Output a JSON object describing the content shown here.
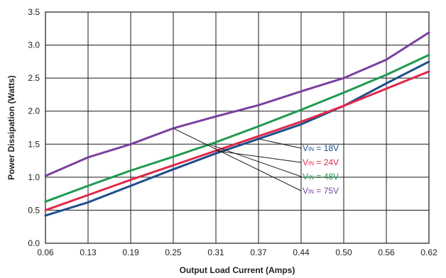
{
  "chart_data": {
    "type": "line",
    "title": "",
    "xlabel": "Output Load Current (Amps)",
    "ylabel": "Power Dissipation (Watts)",
    "xlim": [
      0.06,
      0.62
    ],
    "ylim": [
      0.0,
      3.5
    ],
    "grid": true,
    "x_ticks": [
      "0.06",
      "0.13",
      "0.19",
      "0.25",
      "0.31",
      "0.37",
      "0.44",
      "0.50",
      "0.56",
      "0.62"
    ],
    "y_ticks": [
      "0.0",
      "0.5",
      "1.0",
      "1.5",
      "2.0",
      "2.5",
      "3.0",
      "3.5"
    ],
    "series": [
      {
        "name": "18V",
        "label_prefix": "V",
        "label_sub": "IN",
        "label_eq": " = 18V",
        "color": "#1f4e8c",
        "x": [
          0.06,
          0.13,
          0.19,
          0.25,
          0.31,
          0.37,
          0.44,
          0.5,
          0.56,
          0.62
        ],
        "y": [
          0.42,
          0.62,
          0.87,
          1.12,
          1.36,
          1.58,
          1.8,
          2.08,
          2.42,
          2.75
        ]
      },
      {
        "name": "24V",
        "label_prefix": "V",
        "label_sub": "IN",
        "label_eq": " = 24V",
        "color": "#e0284a",
        "x": [
          0.06,
          0.13,
          0.19,
          0.25,
          0.31,
          0.37,
          0.44,
          0.5,
          0.56,
          0.62
        ],
        "y": [
          0.5,
          0.73,
          0.96,
          1.18,
          1.4,
          1.62,
          1.84,
          2.08,
          2.34,
          2.6
        ]
      },
      {
        "name": "48V",
        "label_prefix": "V",
        "label_sub": "IN",
        "label_eq": " = 48V",
        "color": "#1e9a4e",
        "x": [
          0.06,
          0.13,
          0.19,
          0.25,
          0.31,
          0.37,
          0.44,
          0.5,
          0.56,
          0.62
        ],
        "y": [
          0.63,
          0.87,
          1.1,
          1.31,
          1.53,
          1.77,
          2.02,
          2.28,
          2.55,
          2.85
        ]
      },
      {
        "name": "75V",
        "label_prefix": "V",
        "label_sub": "IN",
        "label_eq": " = 75V",
        "color": "#7a3fa0",
        "x": [
          0.06,
          0.13,
          0.19,
          0.25,
          0.31,
          0.37,
          0.44,
          0.5,
          0.56,
          0.62
        ],
        "y": [
          1.02,
          1.3,
          1.5,
          1.74,
          1.92,
          2.09,
          2.3,
          2.5,
          2.78,
          3.19
        ]
      }
    ],
    "label_leaders": [
      {
        "from_x": 0.37,
        "from_y": 1.58
      },
      {
        "from_x": 0.31,
        "from_y": 1.4
      },
      {
        "from_x": 0.3,
        "from_y": 1.5
      },
      {
        "from_x": 0.25,
        "from_y": 1.74
      }
    ]
  }
}
